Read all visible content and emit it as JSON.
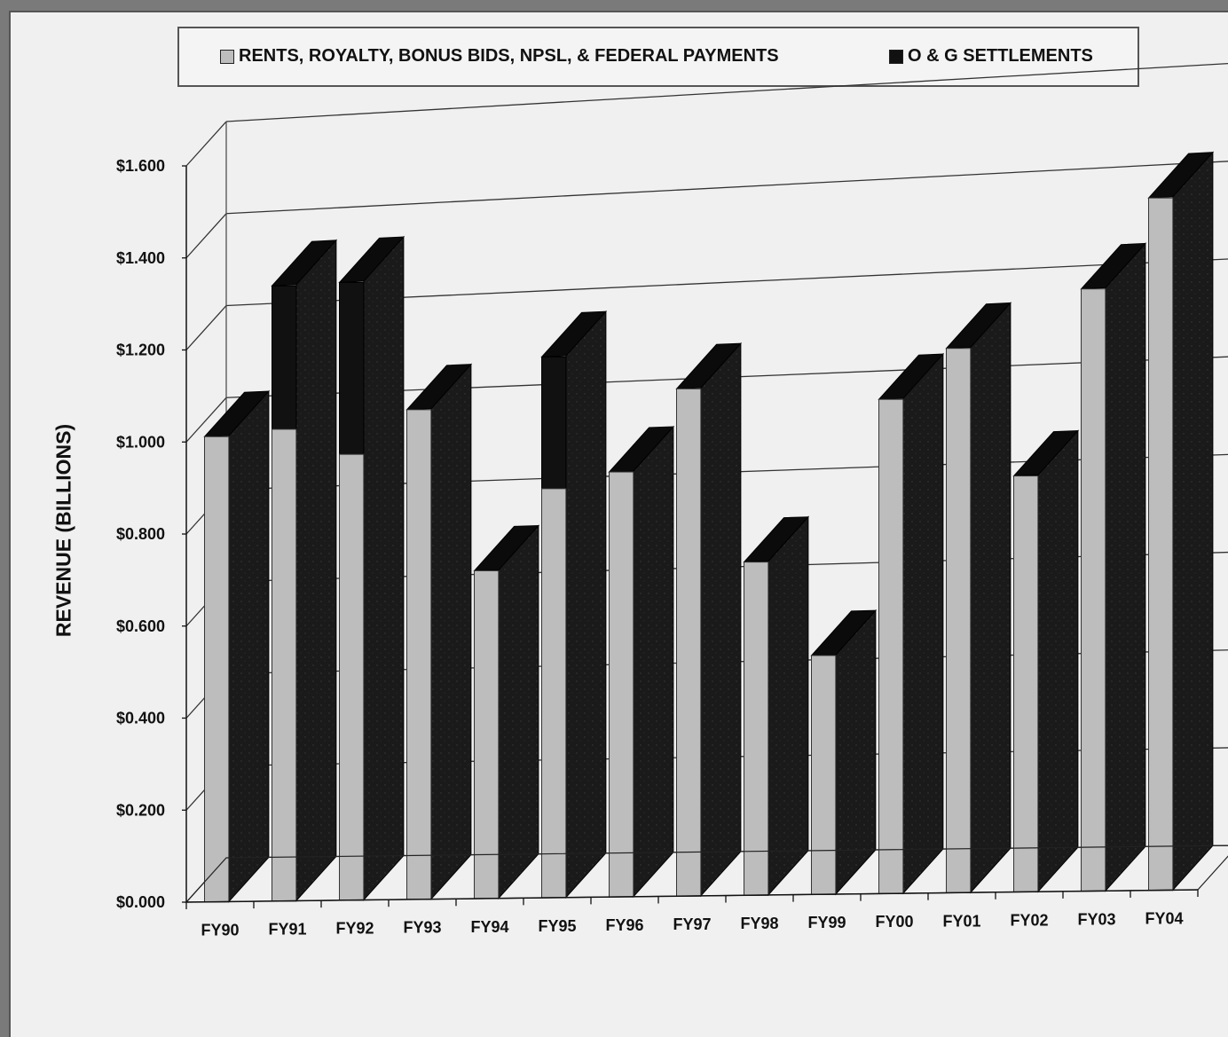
{
  "legend": {
    "series1_label": "RENTS, ROYALTY, BONUS BIDS, NPSL, & FEDERAL PAYMENTS",
    "series2_label": "O & G SETTLEMENTS"
  },
  "chart_data": {
    "type": "bar",
    "stacked": true,
    "three_d": true,
    "ylabel": "REVENUE (BILLIONS)",
    "xlabel": "",
    "ylim": [
      0,
      1.6
    ],
    "ytick_labels": [
      "$0.000",
      "$0.200",
      "$0.400",
      "$0.600",
      "$0.800",
      "$1.000",
      "$1.200",
      "$1.400",
      "$1.600"
    ],
    "categories": [
      "FY90",
      "FY91",
      "FY92",
      "FY93",
      "FY94",
      "FY95",
      "FY96",
      "FY97",
      "FY98",
      "FY99",
      "FY00",
      "FY01",
      "FY02",
      "FY03",
      "FY04"
    ],
    "series": [
      {
        "name": "RENTS, ROYALTY, BONUS BIDS, NPSL, & FEDERAL PAYMENTS",
        "color": "#bdbdbd",
        "values": [
          1.01,
          1.02,
          0.96,
          1.05,
          0.7,
          0.87,
          0.9,
          1.07,
          0.7,
          0.5,
          1.03,
          1.13,
          0.86,
          1.24,
          1.42
        ]
      },
      {
        "name": "O & G SETTLEMENTS",
        "color": "#1e1e1e",
        "values": [
          0.0,
          0.31,
          0.37,
          0.0,
          0.0,
          0.28,
          0.0,
          0.0,
          0.0,
          0.0,
          0.0,
          0.0,
          0.0,
          0.0,
          0.0
        ]
      }
    ],
    "grid": true,
    "legend_position": "top"
  }
}
